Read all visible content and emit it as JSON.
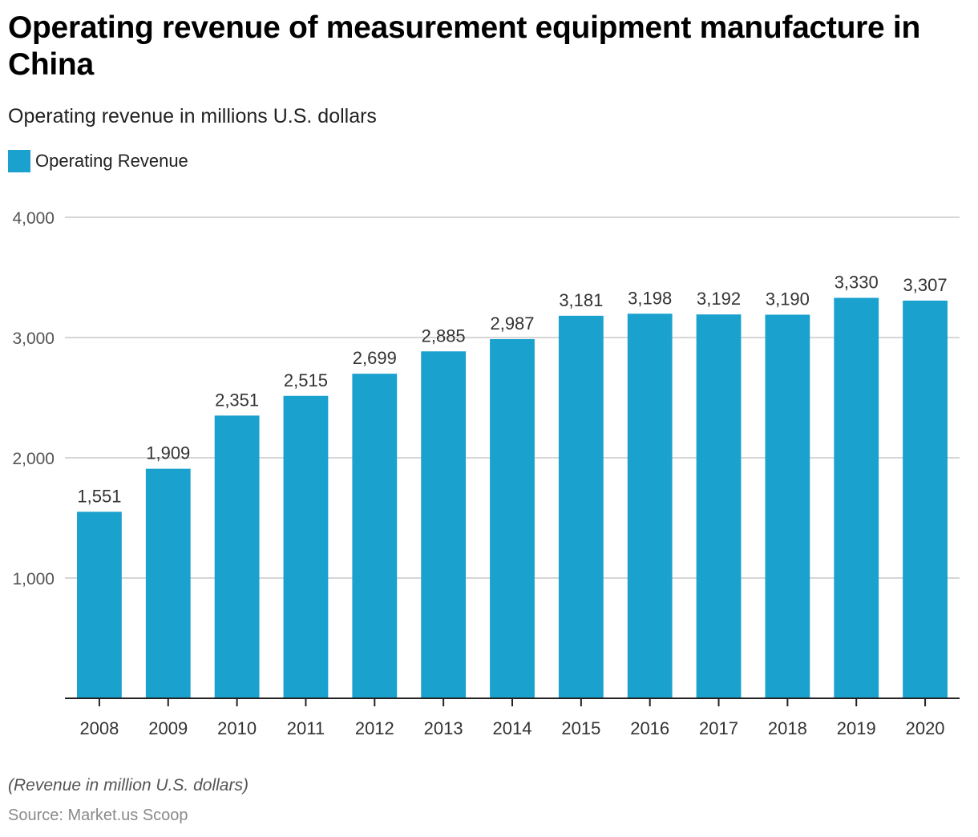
{
  "title": "Operating revenue of measurement equipment manufacture in China",
  "subtitle": "Operating revenue in millions U.S. dollars",
  "legend": {
    "label": "Operating Revenue",
    "color": "#1aa1ce"
  },
  "note": "(Revenue in million U.S. dollars)",
  "source": "Source: Market.us Scoop",
  "chart_data": {
    "type": "bar",
    "title": "Operating revenue of measurement equipment manufacture in China",
    "subtitle": "Operating revenue in millions U.S. dollars",
    "xlabel": "",
    "ylabel": "",
    "categories": [
      "2008",
      "2009",
      "2010",
      "2011",
      "2012",
      "2013",
      "2014",
      "2015",
      "2016",
      "2017",
      "2018",
      "2019",
      "2020"
    ],
    "series": [
      {
        "name": "Operating Revenue",
        "color": "#1aa1ce",
        "values": [
          1551,
          1909,
          2351,
          2515,
          2699,
          2885,
          2987,
          3181,
          3198,
          3192,
          3190,
          3330,
          3307
        ],
        "labels": [
          "1,551",
          "1,909",
          "2,351",
          "2,515",
          "2,699",
          "2,885",
          "2,987",
          "3,181",
          "3,198",
          "3,192",
          "3,190",
          "3,330",
          "3,307"
        ]
      }
    ],
    "ylim": [
      0,
      4000
    ],
    "yticks": [
      1000,
      2000,
      3000,
      4000
    ],
    "ytick_labels": [
      "1,000",
      "2,000",
      "3,000",
      "4,000"
    ],
    "grid": true,
    "legend_position": "top-left"
  }
}
